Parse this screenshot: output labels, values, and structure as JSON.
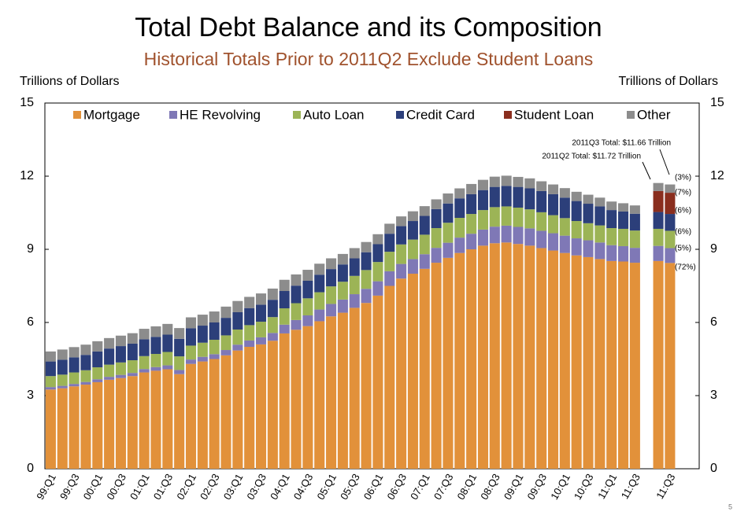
{
  "chart_data": {
    "type": "stacked_bar",
    "title": "Total Debt Balance and its Composition",
    "subtitle": "Historical Totals Prior to 2011Q2 Exclude Student Loans",
    "y_label": "Trillions of Dollars",
    "y2_label": "Trillions of Dollars",
    "annotations": [
      "2011Q3 Total: $11.66 Trillion",
      "2011Q2 Total: $11.72 Trillion"
    ],
    "share_labels": [
      "(3%)",
      "(7%)",
      "(6%)",
      "(6%)",
      "(5%)",
      "(72%)"
    ],
    "page_number": "5",
    "categories": [
      "99:Q1",
      null,
      "99:Q3",
      null,
      "00:Q1",
      null,
      "00:Q3",
      null,
      "01:Q1",
      null,
      "01:Q3",
      null,
      "02:Q1",
      null,
      "02:Q3",
      null,
      "03:Q1",
      null,
      "03:Q3",
      null,
      "04:Q1",
      null,
      "04:Q3",
      null,
      "05:Q1",
      null,
      "05:Q3",
      null,
      "06:Q1",
      null,
      "06:Q3",
      null,
      "07:Q1",
      null,
      "07:Q3",
      null,
      "08:Q1",
      null,
      "08:Q3",
      null,
      "09:Q1",
      null,
      "09:Q3",
      null,
      "10:Q1",
      null,
      "10:Q3",
      null,
      "11:Q1",
      null,
      "11:Q3",
      null,
      null,
      "11:Q3"
    ],
    "series": [
      {
        "name": "Mortgage",
        "color": "#e2913a",
        "values": [
          3.25,
          3.3,
          3.38,
          3.45,
          3.55,
          3.65,
          3.72,
          3.8,
          3.95,
          4.02,
          4.08,
          3.88,
          4.3,
          4.4,
          4.5,
          4.65,
          4.85,
          5.0,
          5.1,
          5.25,
          5.55,
          5.7,
          5.85,
          6.05,
          6.25,
          6.4,
          6.6,
          6.8,
          7.1,
          7.5,
          7.8,
          8.0,
          8.2,
          8.45,
          8.65,
          8.85,
          9.0,
          9.15,
          9.25,
          9.28,
          9.22,
          9.15,
          9.05,
          8.95,
          8.85,
          8.75,
          8.68,
          8.6,
          8.52,
          8.5,
          8.45,
          null,
          8.52,
          8.44
        ]
      },
      {
        "name": "HE Revolving",
        "color": "#7f78b6",
        "values": [
          0.1,
          0.1,
          0.1,
          0.11,
          0.12,
          0.12,
          0.13,
          0.13,
          0.14,
          0.15,
          0.16,
          0.17,
          0.18,
          0.19,
          0.2,
          0.22,
          0.24,
          0.26,
          0.29,
          0.32,
          0.36,
          0.4,
          0.44,
          0.48,
          0.51,
          0.54,
          0.56,
          0.58,
          0.59,
          0.6,
          0.6,
          0.6,
          0.6,
          0.61,
          0.62,
          0.63,
          0.64,
          0.66,
          0.68,
          0.69,
          0.7,
          0.71,
          0.71,
          0.71,
          0.71,
          0.7,
          0.69,
          0.68,
          0.65,
          0.63,
          0.61,
          null,
          0.62,
          0.61
        ]
      },
      {
        "name": "Auto Loan",
        "color": "#9cb456",
        "values": [
          0.45,
          0.46,
          0.47,
          0.48,
          0.49,
          0.5,
          0.51,
          0.52,
          0.53,
          0.54,
          0.55,
          0.56,
          0.57,
          0.58,
          0.59,
          0.6,
          0.62,
          0.63,
          0.64,
          0.65,
          0.67,
          0.69,
          0.7,
          0.71,
          0.72,
          0.73,
          0.75,
          0.77,
          0.79,
          0.8,
          0.8,
          0.8,
          0.8,
          0.81,
          0.82,
          0.81,
          0.81,
          0.8,
          0.8,
          0.79,
          0.79,
          0.78,
          0.76,
          0.74,
          0.72,
          0.71,
          0.7,
          0.7,
          0.7,
          0.71,
          0.71,
          null,
          0.7,
          0.71
        ]
      },
      {
        "name": "Credit Card",
        "color": "#2c3f7a",
        "values": [
          0.6,
          0.61,
          0.62,
          0.63,
          0.65,
          0.66,
          0.67,
          0.68,
          0.69,
          0.7,
          0.71,
          0.72,
          0.71,
          0.7,
          0.71,
          0.72,
          0.71,
          0.7,
          0.7,
          0.71,
          0.71,
          0.72,
          0.72,
          0.72,
          0.71,
          0.71,
          0.72,
          0.73,
          0.73,
          0.74,
          0.75,
          0.76,
          0.77,
          0.78,
          0.79,
          0.8,
          0.81,
          0.82,
          0.83,
          0.84,
          0.85,
          0.86,
          0.87,
          0.86,
          0.84,
          0.82,
          0.8,
          0.78,
          0.74,
          0.71,
          0.69,
          null,
          0.69,
          0.69
        ]
      },
      {
        "name": "Student Loan",
        "color": "#8a2e1e",
        "values": [
          null,
          null,
          null,
          null,
          null,
          null,
          null,
          null,
          null,
          null,
          null,
          null,
          null,
          null,
          null,
          null,
          null,
          null,
          null,
          null,
          null,
          null,
          null,
          null,
          null,
          null,
          null,
          null,
          null,
          null,
          null,
          null,
          null,
          null,
          null,
          null,
          null,
          null,
          null,
          null,
          null,
          null,
          null,
          null,
          null,
          null,
          null,
          null,
          null,
          null,
          null,
          null,
          0.86,
          0.87
        ]
      },
      {
        "name": "Other",
        "color": "#8c8c8c",
        "values": [
          0.41,
          0.42,
          0.42,
          0.42,
          0.42,
          0.43,
          0.43,
          0.43,
          0.43,
          0.43,
          0.44,
          0.44,
          0.45,
          0.45,
          0.45,
          0.46,
          0.46,
          0.46,
          0.46,
          0.46,
          0.46,
          0.46,
          0.45,
          0.45,
          0.44,
          0.43,
          0.42,
          0.42,
          0.41,
          0.41,
          0.4,
          0.4,
          0.4,
          0.4,
          0.41,
          0.41,
          0.42,
          0.42,
          0.42,
          0.42,
          0.41,
          0.41,
          0.4,
          0.4,
          0.39,
          0.38,
          0.37,
          0.36,
          0.35,
          0.34,
          0.34,
          null,
          0.33,
          0.34
        ]
      }
    ],
    "ylim": [
      0,
      15
    ],
    "yticks": [
      0,
      3,
      6,
      9,
      12,
      15
    ],
    "y2lim": [
      0,
      15
    ],
    "y2ticks": [
      0,
      3,
      6,
      9,
      12,
      15
    ],
    "legend": "top"
  }
}
